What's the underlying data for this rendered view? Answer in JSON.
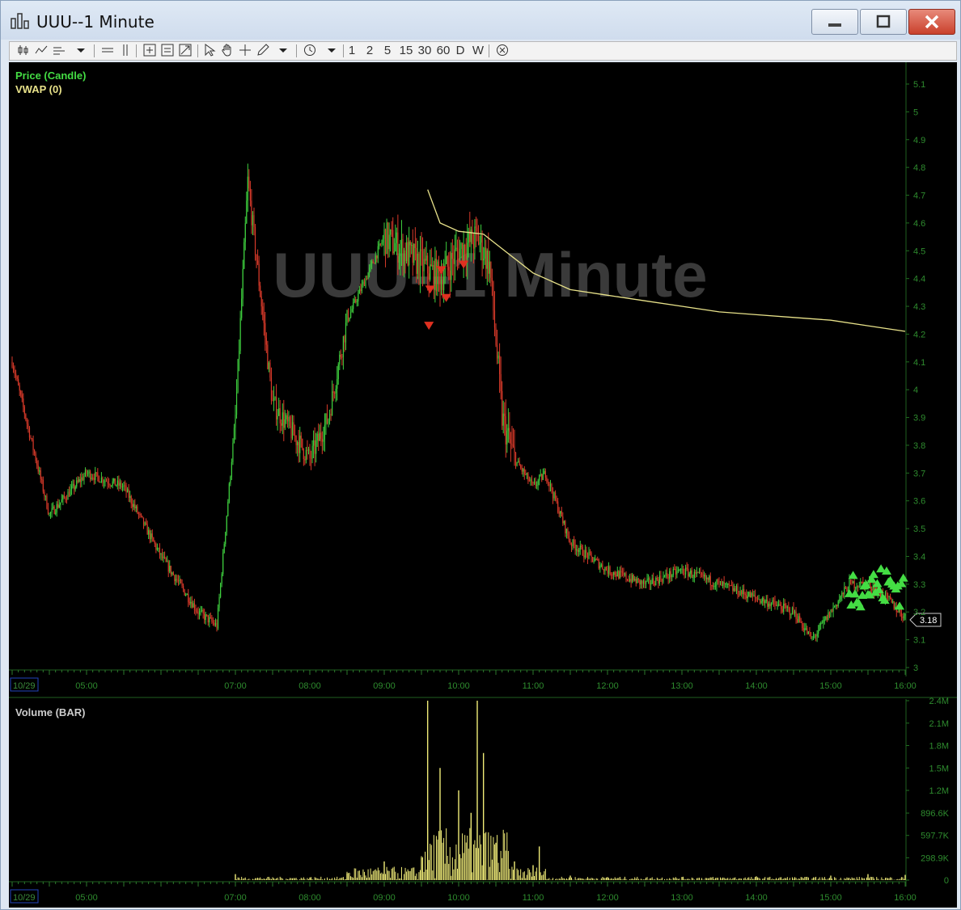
{
  "window": {
    "title": "UUU--1 Minute",
    "buttons": {
      "minimize": "minimize",
      "maximize": "maximize",
      "close": "close"
    }
  },
  "toolbar": {
    "intervals": [
      "1",
      "2",
      "5",
      "15",
      "30",
      "60",
      "D",
      "W"
    ],
    "icons": [
      "candle-icon",
      "line-icon",
      "bars-icon",
      "dropdown-icon",
      "hline-icon",
      "vline-icon",
      "zoom-in-icon",
      "zoom-out-icon",
      "zoom-fit-icon",
      "cursor-icon",
      "hand-icon",
      "crosshair-icon",
      "pencil-icon",
      "dropdown-icon",
      "clock-icon",
      "dropdown-icon",
      "close-circle-icon"
    ]
  },
  "watermark": "UUU--1 Minute",
  "colors": {
    "up": "#3ecf3e",
    "down": "#d83a2a",
    "vwap": "#e8e28a",
    "volume": "#f0ec78",
    "axis": "#2e8b2e",
    "marker_sell": "#e03020",
    "marker_buy": "#44dd44"
  },
  "price_panel": {
    "legend": [
      {
        "label": "Price (Candle)",
        "color": "#44dd44"
      },
      {
        "label": "VWAP (0)",
        "color": "#e8e28a"
      }
    ],
    "y_ticks": [
      "5.1",
      "5",
      "4.9",
      "4.8",
      "4.7",
      "4.6",
      "4.5",
      "4.4",
      "4.3",
      "4.2",
      "4.1",
      "4",
      "3.9",
      "3.8",
      "3.7",
      "3.6",
      "3.5",
      "3.4",
      "3.3",
      "3.2",
      "3.1",
      "3"
    ],
    "last_price": "3.18",
    "date_label": "10/29",
    "x_ticks": [
      "05:00",
      "07:00",
      "08:00",
      "09:00",
      "10:00",
      "11:00",
      "12:00",
      "13:00",
      "14:00",
      "15:00",
      "16:00"
    ]
  },
  "volume_panel": {
    "legend": "Volume (BAR)",
    "y_ticks": [
      "2.4M",
      "2.1M",
      "1.8M",
      "1.5M",
      "1.2M",
      "896.6K",
      "597.7K",
      "298.9K",
      "0"
    ],
    "date_label": "10/29",
    "x_ticks": [
      "05:00",
      "07:00",
      "08:00",
      "09:00",
      "10:00",
      "11:00",
      "12:00",
      "13:00",
      "14:00",
      "15:00",
      "16:00"
    ]
  },
  "chart_data": [
    {
      "type": "line",
      "name": "Price (Candle)",
      "x": [
        "04:00",
        "04:30",
        "05:00",
        "05:30",
        "06:00",
        "06:30",
        "06:45",
        "07:00",
        "07:10",
        "07:30",
        "08:00",
        "08:15",
        "08:30",
        "09:00",
        "09:30",
        "09:45",
        "10:00",
        "10:15",
        "10:25",
        "10:35",
        "10:45",
        "11:00",
        "11:10",
        "11:30",
        "12:00",
        "12:30",
        "13:00",
        "13:30",
        "14:00",
        "14:30",
        "14:45",
        "15:00",
        "15:15",
        "15:30",
        "15:45",
        "16:00"
      ],
      "y": [
        4.1,
        3.55,
        3.7,
        3.65,
        3.4,
        3.2,
        3.15,
        3.9,
        4.75,
        3.95,
        3.75,
        3.9,
        4.25,
        4.55,
        4.45,
        4.4,
        4.5,
        4.55,
        4.45,
        3.9,
        3.75,
        3.65,
        3.7,
        3.45,
        3.35,
        3.3,
        3.35,
        3.3,
        3.25,
        3.2,
        3.1,
        3.2,
        3.3,
        3.3,
        3.25,
        3.18
      ],
      "ylim": [
        3,
        5.15
      ]
    },
    {
      "type": "line",
      "name": "VWAP (0)",
      "x": [
        "09:35",
        "09:45",
        "10:00",
        "10:20",
        "10:40",
        "11:00",
        "11:30",
        "12:00",
        "12:30",
        "13:00",
        "13:30",
        "14:00",
        "14:30",
        "15:00",
        "15:30",
        "16:00"
      ],
      "y": [
        4.72,
        4.6,
        4.57,
        4.56,
        4.49,
        4.42,
        4.36,
        4.34,
        4.32,
        4.3,
        4.28,
        4.27,
        4.26,
        4.25,
        4.23,
        4.21
      ],
      "ylim": [
        3,
        5.15
      ]
    },
    {
      "type": "bar",
      "name": "Volume (BAR)",
      "x": [
        "07:00",
        "08:00",
        "08:30",
        "09:00",
        "09:30",
        "09:35",
        "09:45",
        "10:00",
        "10:10",
        "10:15",
        "10:20",
        "10:30",
        "10:45",
        "11:00",
        "11:05",
        "11:30",
        "12:00",
        "13:00",
        "14:00",
        "15:00",
        "15:30",
        "16:00"
      ],
      "y": [
        80000,
        30000,
        90000,
        250000,
        300000,
        2400000,
        1500000,
        1200000,
        900000,
        2400000,
        1700000,
        500000,
        250000,
        200000,
        450000,
        60000,
        40000,
        40000,
        50000,
        60000,
        80000,
        70000
      ],
      "ylim": [
        0,
        2400000
      ]
    }
  ]
}
